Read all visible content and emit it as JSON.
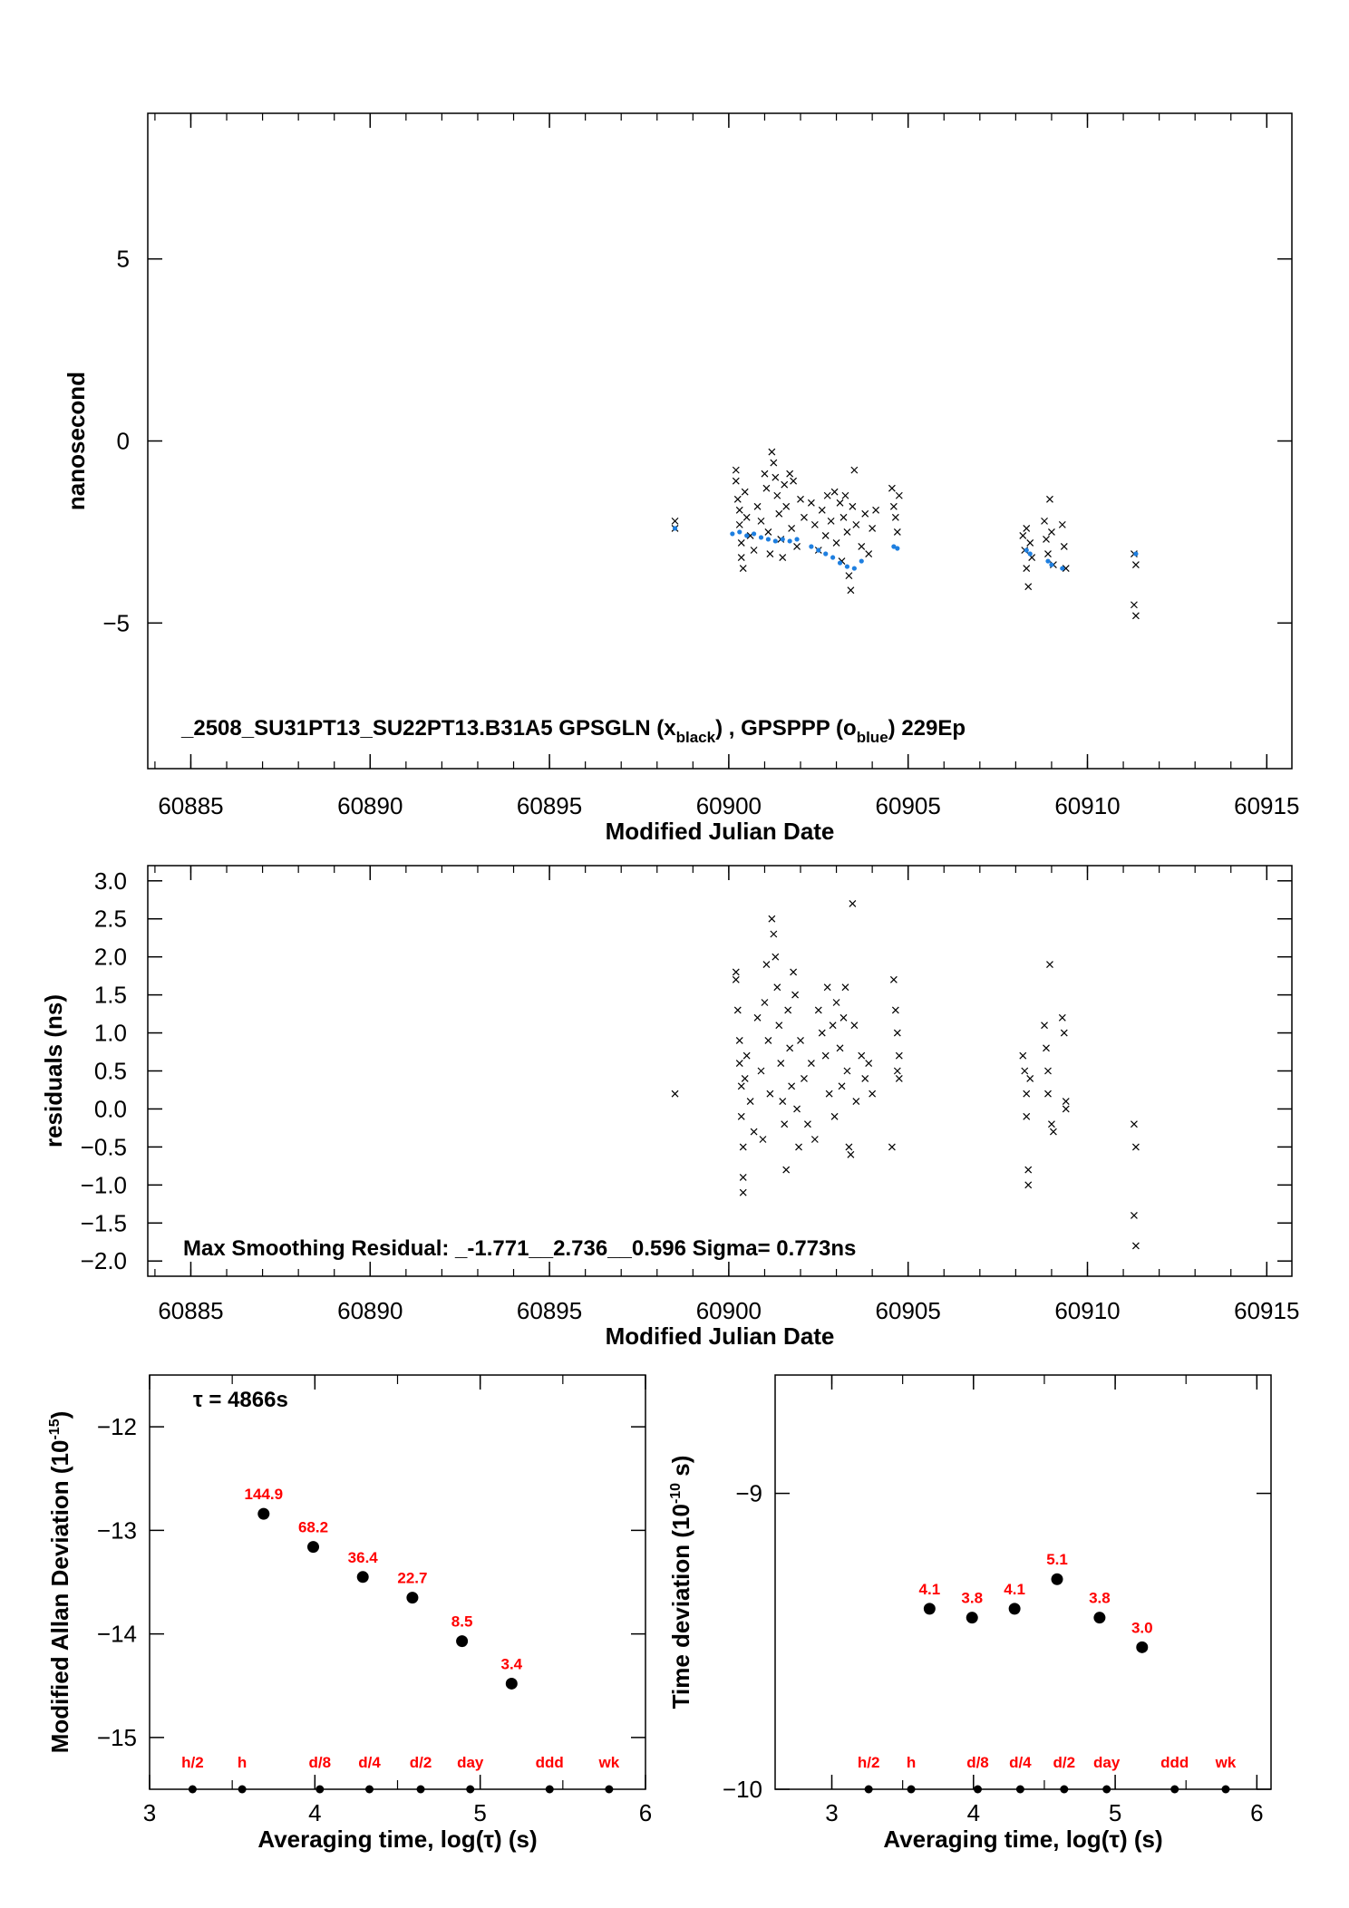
{
  "chart_data": [
    {
      "id": "time_series",
      "type": "scatter",
      "xlabel": "Modified Julian Date",
      "ylabel": "nanosecond",
      "xlim": [
        60883.8,
        60915.7
      ],
      "ylim": [
        -9,
        9
      ],
      "x_ticks": [
        60885,
        60890,
        60895,
        60900,
        60905,
        60910,
        60915
      ],
      "y_ticks": [
        5,
        0,
        -5
      ],
      "y_tick_labels": [
        "5",
        "0",
        "−5"
      ],
      "annotation": {
        "prefix": "_2508_SU31PT13_SU22PT13.B31A5     GPSGLN (x",
        "sub1": "black",
        "middle": ") ,  GPSPPP (o",
        "sub2": "blue",
        "suffix": ")  229Ep"
      },
      "series": [
        {
          "name": "GPSGLN",
          "marker": "x",
          "color": "#000000",
          "points": [
            [
              60898.5,
              -2.2
            ],
            [
              60898.5,
              -2.4
            ],
            [
              60900.2,
              -0.8
            ],
            [
              60900.2,
              -1.1
            ],
            [
              60900.25,
              -1.6
            ],
            [
              60900.3,
              -1.9
            ],
            [
              60900.3,
              -2.3
            ],
            [
              60900.35,
              -2.8
            ],
            [
              60900.35,
              -3.2
            ],
            [
              60900.4,
              -3.5
            ],
            [
              60900.45,
              -1.4
            ],
            [
              60900.5,
              -2.1
            ],
            [
              60900.6,
              -2.6
            ],
            [
              60900.7,
              -3.0
            ],
            [
              60900.8,
              -1.8
            ],
            [
              60900.9,
              -2.2
            ],
            [
              60901.0,
              -0.9
            ],
            [
              60901.05,
              -1.3
            ],
            [
              60901.1,
              -2.5
            ],
            [
              60901.15,
              -3.1
            ],
            [
              60901.2,
              -0.3
            ],
            [
              60901.25,
              -0.6
            ],
            [
              60901.3,
              -1.0
            ],
            [
              60901.35,
              -1.5
            ],
            [
              60901.4,
              -2.0
            ],
            [
              60901.45,
              -2.7
            ],
            [
              60901.5,
              -3.2
            ],
            [
              60901.55,
              -1.2
            ],
            [
              60901.6,
              -1.8
            ],
            [
              60901.7,
              -0.9
            ],
            [
              60901.75,
              -2.4
            ],
            [
              60901.8,
              -1.1
            ],
            [
              60901.9,
              -2.9
            ],
            [
              60902.0,
              -1.6
            ],
            [
              60902.1,
              -2.1
            ],
            [
              60902.3,
              -1.7
            ],
            [
              60902.4,
              -2.3
            ],
            [
              60902.5,
              -3.0
            ],
            [
              60902.6,
              -1.9
            ],
            [
              60902.7,
              -2.6
            ],
            [
              60902.75,
              -1.5
            ],
            [
              60902.85,
              -2.2
            ],
            [
              60902.95,
              -1.4
            ],
            [
              60903.0,
              -2.8
            ],
            [
              60903.1,
              -1.7
            ],
            [
              60903.15,
              -3.3
            ],
            [
              60903.2,
              -2.1
            ],
            [
              60903.25,
              -1.5
            ],
            [
              60903.3,
              -2.5
            ],
            [
              60903.35,
              -3.7
            ],
            [
              60903.4,
              -4.1
            ],
            [
              60903.45,
              -1.8
            ],
            [
              60903.5,
              -0.8
            ],
            [
              60903.55,
              -2.3
            ],
            [
              60903.7,
              -2.9
            ],
            [
              60903.8,
              -2.0
            ],
            [
              60903.9,
              -3.1
            ],
            [
              60904.0,
              -2.4
            ],
            [
              60904.1,
              -1.9
            ],
            [
              60904.55,
              -1.3
            ],
            [
              60904.6,
              -1.8
            ],
            [
              60904.65,
              -2.1
            ],
            [
              60904.7,
              -2.5
            ],
            [
              60904.75,
              -1.5
            ],
            [
              60908.2,
              -2.6
            ],
            [
              60908.25,
              -3.0
            ],
            [
              60908.3,
              -3.5
            ],
            [
              60908.35,
              -4.0
            ],
            [
              60908.3,
              -2.4
            ],
            [
              60908.4,
              -2.8
            ],
            [
              60908.45,
              -3.2
            ],
            [
              60908.8,
              -2.2
            ],
            [
              60908.85,
              -2.7
            ],
            [
              60908.9,
              -3.1
            ],
            [
              60908.95,
              -1.6
            ],
            [
              60909.0,
              -2.5
            ],
            [
              60909.05,
              -3.4
            ],
            [
              60909.3,
              -2.3
            ],
            [
              60909.35,
              -2.9
            ],
            [
              60909.4,
              -3.5
            ],
            [
              60911.3,
              -3.1
            ],
            [
              60911.35,
              -3.4
            ],
            [
              60911.3,
              -4.5
            ],
            [
              60911.35,
              -4.8
            ]
          ]
        },
        {
          "name": "GPSPPP",
          "marker": "o",
          "color": "#1e7fe0",
          "points": [
            [
              60898.5,
              -2.4
            ],
            [
              60900.1,
              -2.55
            ],
            [
              60900.3,
              -2.5
            ],
            [
              60900.5,
              -2.6
            ],
            [
              60900.7,
              -2.55
            ],
            [
              60900.9,
              -2.65
            ],
            [
              60901.1,
              -2.7
            ],
            [
              60901.3,
              -2.75
            ],
            [
              60901.5,
              -2.7
            ],
            [
              60901.7,
              -2.75
            ],
            [
              60901.9,
              -2.7
            ],
            [
              60902.3,
              -2.9
            ],
            [
              60902.5,
              -3.0
            ],
            [
              60902.7,
              -3.1
            ],
            [
              60902.9,
              -3.2
            ],
            [
              60903.1,
              -3.35
            ],
            [
              60903.3,
              -3.45
            ],
            [
              60903.5,
              -3.5
            ],
            [
              60903.7,
              -3.3
            ],
            [
              60904.6,
              -2.9
            ],
            [
              60904.7,
              -2.95
            ],
            [
              60908.3,
              -3.0
            ],
            [
              60908.4,
              -3.1
            ],
            [
              60908.9,
              -3.3
            ],
            [
              60909.0,
              -3.4
            ],
            [
              60909.3,
              -3.5
            ],
            [
              60911.35,
              -3.1
            ]
          ]
        }
      ]
    },
    {
      "id": "residuals",
      "type": "scatter",
      "xlabel": "Modified Julian Date",
      "ylabel": "residuals (ns)",
      "xlim": [
        60883.8,
        60915.7
      ],
      "ylim": [
        -2.2,
        3.2
      ],
      "x_ticks": [
        60885,
        60890,
        60895,
        60900,
        60905,
        60910,
        60915
      ],
      "y_ticks": [
        3.0,
        2.5,
        2.0,
        1.5,
        1.0,
        0.5,
        0.0,
        -0.5,
        -1.0,
        -1.5,
        -2.0
      ],
      "y_tick_labels": [
        "3.0",
        "2.5",
        "2.0",
        "1.5",
        "1.0",
        "0.5",
        "0.0",
        "−0.5",
        "−1.0",
        "−1.5",
        "−2.0"
      ],
      "annotation": "Max Smoothing Residual: _-1.771__2.736__0.596  Sigma= 0.773ns",
      "series": [
        {
          "marker": "x",
          "color": "#000000",
          "points": [
            [
              60898.5,
              0.2
            ],
            [
              60900.2,
              1.8
            ],
            [
              60900.2,
              1.7
            ],
            [
              60900.25,
              1.3
            ],
            [
              60900.3,
              0.9
            ],
            [
              60900.3,
              0.6
            ],
            [
              60900.35,
              0.3
            ],
            [
              60900.35,
              -0.1
            ],
            [
              60900.4,
              -0.5
            ],
            [
              60900.4,
              -0.9
            ],
            [
              60900.4,
              -1.1
            ],
            [
              60900.45,
              0.4
            ],
            [
              60900.5,
              0.7
            ],
            [
              60900.6,
              0.1
            ],
            [
              60900.7,
              -0.3
            ],
            [
              60900.8,
              1.2
            ],
            [
              60900.9,
              0.5
            ],
            [
              60900.95,
              -0.4
            ],
            [
              60901.0,
              1.4
            ],
            [
              60901.05,
              1.9
            ],
            [
              60901.1,
              0.9
            ],
            [
              60901.15,
              0.2
            ],
            [
              60901.2,
              2.5
            ],
            [
              60901.25,
              2.3
            ],
            [
              60901.3,
              2.0
            ],
            [
              60901.35,
              1.6
            ],
            [
              60901.4,
              1.1
            ],
            [
              60901.45,
              0.6
            ],
            [
              60901.5,
              0.1
            ],
            [
              60901.55,
              -0.2
            ],
            [
              60901.6,
              -0.8
            ],
            [
              60901.65,
              1.3
            ],
            [
              60901.7,
              0.8
            ],
            [
              60901.75,
              0.3
            ],
            [
              60901.8,
              1.8
            ],
            [
              60901.85,
              1.5
            ],
            [
              60901.9,
              0.0
            ],
            [
              60901.95,
              -0.5
            ],
            [
              60902.0,
              0.9
            ],
            [
              60902.1,
              0.4
            ],
            [
              60902.2,
              -0.2
            ],
            [
              60902.3,
              0.6
            ],
            [
              60902.4,
              -0.4
            ],
            [
              60902.5,
              1.3
            ],
            [
              60902.6,
              1.0
            ],
            [
              60902.7,
              0.7
            ],
            [
              60902.75,
              1.6
            ],
            [
              60902.8,
              0.2
            ],
            [
              60902.9,
              1.1
            ],
            [
              60902.95,
              -0.1
            ],
            [
              60903.0,
              1.4
            ],
            [
              60903.1,
              0.8
            ],
            [
              60903.15,
              0.3
            ],
            [
              60903.2,
              1.2
            ],
            [
              60903.25,
              1.6
            ],
            [
              60903.3,
              0.5
            ],
            [
              60903.35,
              -0.5
            ],
            [
              60903.4,
              -0.6
            ],
            [
              60903.45,
              2.7
            ],
            [
              60903.5,
              1.1
            ],
            [
              60903.55,
              0.1
            ],
            [
              60903.7,
              0.7
            ],
            [
              60903.8,
              0.4
            ],
            [
              60903.9,
              0.6
            ],
            [
              60904.0,
              0.2
            ],
            [
              60904.55,
              -0.5
            ],
            [
              60904.6,
              1.7
            ],
            [
              60904.65,
              1.3
            ],
            [
              60904.7,
              1.0
            ],
            [
              60904.75,
              0.7
            ],
            [
              60904.7,
              0.5
            ],
            [
              60904.75,
              0.4
            ],
            [
              60908.2,
              0.7
            ],
            [
              60908.25,
              0.5
            ],
            [
              60908.3,
              0.2
            ],
            [
              60908.3,
              -0.1
            ],
            [
              60908.35,
              -0.8
            ],
            [
              60908.35,
              -1.0
            ],
            [
              60908.4,
              0.4
            ],
            [
              60908.8,
              1.1
            ],
            [
              60908.85,
              0.8
            ],
            [
              60908.9,
              0.5
            ],
            [
              60908.9,
              0.2
            ],
            [
              60908.95,
              1.9
            ],
            [
              60909.0,
              -0.2
            ],
            [
              60909.05,
              -0.3
            ],
            [
              60909.3,
              1.2
            ],
            [
              60909.35,
              1.0
            ],
            [
              60909.4,
              0.1
            ],
            [
              60909.4,
              0.0
            ],
            [
              60911.3,
              -0.2
            ],
            [
              60911.35,
              -0.5
            ],
            [
              60911.3,
              -1.4
            ],
            [
              60911.35,
              -1.8
            ]
          ]
        }
      ]
    },
    {
      "id": "allan_deviation",
      "type": "scatter",
      "xlabel": "Averaging time, log(τ) (s)",
      "ylabel": "Modified Allan Deviation (10",
      "ylabel_sup": "-15",
      "ylabel_end": ")",
      "xlim": [
        3,
        6
      ],
      "ylim": [
        -15.5,
        -11.5
      ],
      "x_ticks": [
        3,
        4,
        5,
        6
      ],
      "y_ticks": [
        -12,
        -13,
        -14,
        -15
      ],
      "y_tick_labels": [
        "−12",
        "−13",
        "−14",
        "−15"
      ],
      "tau_note": "τ = 4866s",
      "points": [
        {
          "x": 3.69,
          "y": -12.84,
          "label": "144.9"
        },
        {
          "x": 3.99,
          "y": -13.16,
          "label": "68.2"
        },
        {
          "x": 4.29,
          "y": -13.45,
          "label": "36.4"
        },
        {
          "x": 4.59,
          "y": -13.65,
          "label": "22.7"
        },
        {
          "x": 4.89,
          "y": -14.07,
          "label": "8.5"
        },
        {
          "x": 5.19,
          "y": -14.48,
          "label": "3.4"
        }
      ],
      "markers": [
        {
          "x": 3.26,
          "label": "h/2"
        },
        {
          "x": 3.56,
          "label": "h"
        },
        {
          "x": 4.03,
          "label": "d/8"
        },
        {
          "x": 4.33,
          "label": "d/4"
        },
        {
          "x": 4.64,
          "label": "d/2"
        },
        {
          "x": 4.94,
          "label": "day"
        },
        {
          "x": 5.42,
          "label": "ddd"
        },
        {
          "x": 5.78,
          "label": "wk"
        }
      ]
    },
    {
      "id": "time_deviation",
      "type": "scatter",
      "xlabel": "Averaging time, log(τ) (s)",
      "ylabel": "Time deviation (10",
      "ylabel_sup": "-10",
      "ylabel_end": " s)",
      "xlim": [
        2.6,
        6.1
      ],
      "ylim": [
        -10,
        -8.6
      ],
      "x_ticks": [
        3,
        4,
        5,
        6
      ],
      "y_ticks": [
        -9,
        -10
      ],
      "y_tick_labels": [
        "−9",
        "−10"
      ],
      "points": [
        {
          "x": 3.69,
          "y": -9.39,
          "label": "4.1"
        },
        {
          "x": 3.99,
          "y": -9.42,
          "label": "3.8"
        },
        {
          "x": 4.29,
          "y": -9.39,
          "label": "4.1"
        },
        {
          "x": 4.59,
          "y": -9.29,
          "label": "5.1"
        },
        {
          "x": 4.89,
          "y": -9.42,
          "label": "3.8"
        },
        {
          "x": 5.19,
          "y": -9.52,
          "label": "3.0"
        }
      ],
      "markers": [
        {
          "x": 3.26,
          "label": "h/2"
        },
        {
          "x": 3.56,
          "label": "h"
        },
        {
          "x": 4.03,
          "label": "d/8"
        },
        {
          "x": 4.33,
          "label": "d/4"
        },
        {
          "x": 4.64,
          "label": "d/2"
        },
        {
          "x": 4.94,
          "label": "day"
        },
        {
          "x": 5.42,
          "label": "ddd"
        },
        {
          "x": 5.78,
          "label": "wk"
        }
      ]
    }
  ]
}
